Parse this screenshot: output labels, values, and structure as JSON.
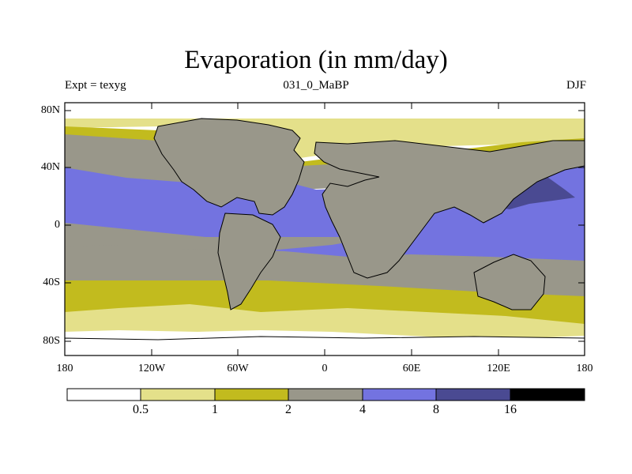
{
  "map": {
    "title": "Evaporation (in mm/day)",
    "experiment": "Expt = texyg",
    "period": "031_0_MaBP",
    "season": "DJF",
    "lat_labels": [
      "80N",
      "40N",
      "0",
      "40S",
      "80S"
    ],
    "lon_labels": [
      "180",
      "120W",
      "60W",
      "0",
      "60E",
      "120E",
      "180"
    ]
  },
  "colorbar": {
    "levels": [
      "0.5",
      "1",
      "2",
      "4",
      "8",
      "16"
    ],
    "colors": [
      "#ffffff",
      "#e4e08a",
      "#c2bb1e",
      "#99978a",
      "#7373e0",
      "#4a4a92",
      "#000000"
    ]
  }
}
